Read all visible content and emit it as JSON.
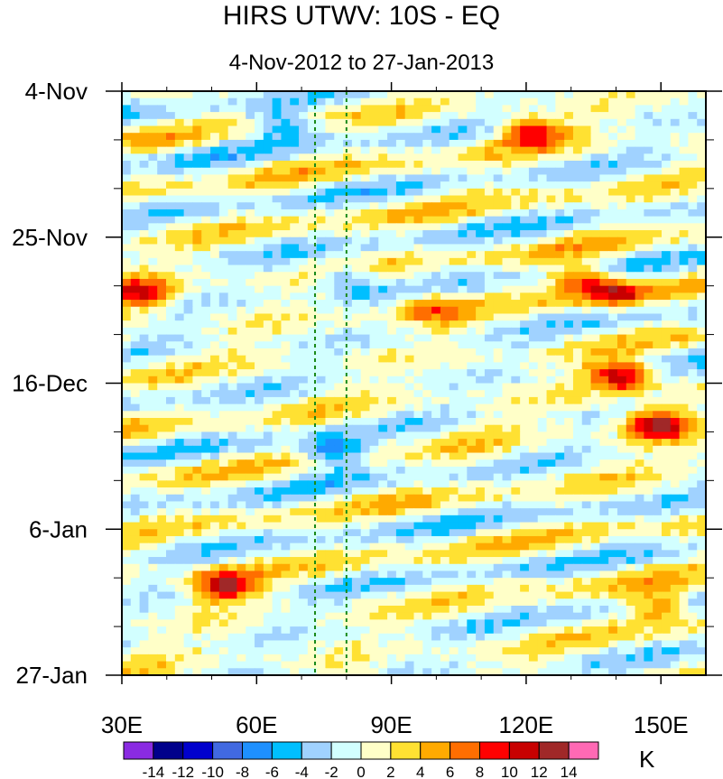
{
  "chart_data": {
    "type": "heatmap",
    "title": "HIRS UTWV: 10S - EQ",
    "subtitle": "4-Nov-2012 to 27-Jan-2013",
    "xlabel": "",
    "ylabel": "",
    "x_range": [
      30,
      160
    ],
    "x_ticks": [
      30,
      60,
      90,
      120,
      150
    ],
    "x_tick_labels": [
      "30E",
      "60E",
      "90E",
      "120E",
      "150E"
    ],
    "y_range_days": [
      0,
      84
    ],
    "y_ticks_days": [
      0,
      21,
      42,
      63,
      84
    ],
    "y_tick_labels": [
      "4-Nov",
      "25-Nov",
      "16-Dec",
      "6-Jan",
      "27-Jan"
    ],
    "reference_lines_lon": [
      73,
      80
    ],
    "colorbar": {
      "labels": [
        "-14",
        "-12",
        "-10",
        "-8",
        "-6",
        "-4",
        "-2",
        "0",
        "2",
        "4",
        "6",
        "8",
        "10",
        "12",
        "14"
      ],
      "colors": [
        "#8a2be2",
        "#00008b",
        "#0000cd",
        "#4169e1",
        "#1e90ff",
        "#00bfff",
        "#a0d2ff",
        "#d2ffff",
        "#ffffc8",
        "#ffe132",
        "#ffaa00",
        "#ff6e00",
        "#ff0000",
        "#c80000",
        "#a02828",
        "#ff69b4"
      ],
      "unit": "K"
    },
    "anomaly_features": [
      {
        "lon": 121,
        "day": 6,
        "value": 9
      },
      {
        "lon": 34,
        "day": 29,
        "value": 10
      },
      {
        "lon": 132,
        "day": 27,
        "value": 8
      },
      {
        "lon": 140,
        "day": 29,
        "value": 9
      },
      {
        "lon": 98,
        "day": 31,
        "value": 7
      },
      {
        "lon": 141,
        "day": 41,
        "value": 12
      },
      {
        "lon": 149,
        "day": 48,
        "value": 13
      },
      {
        "lon": 53,
        "day": 71,
        "value": 12
      },
      {
        "lon": 66,
        "day": 5,
        "value": -6
      },
      {
        "lon": 77,
        "day": 52,
        "value": -8
      },
      {
        "lon": 80,
        "day": 27,
        "value": -6
      },
      {
        "lon": 150,
        "day": 74,
        "value": 8
      }
    ]
  }
}
